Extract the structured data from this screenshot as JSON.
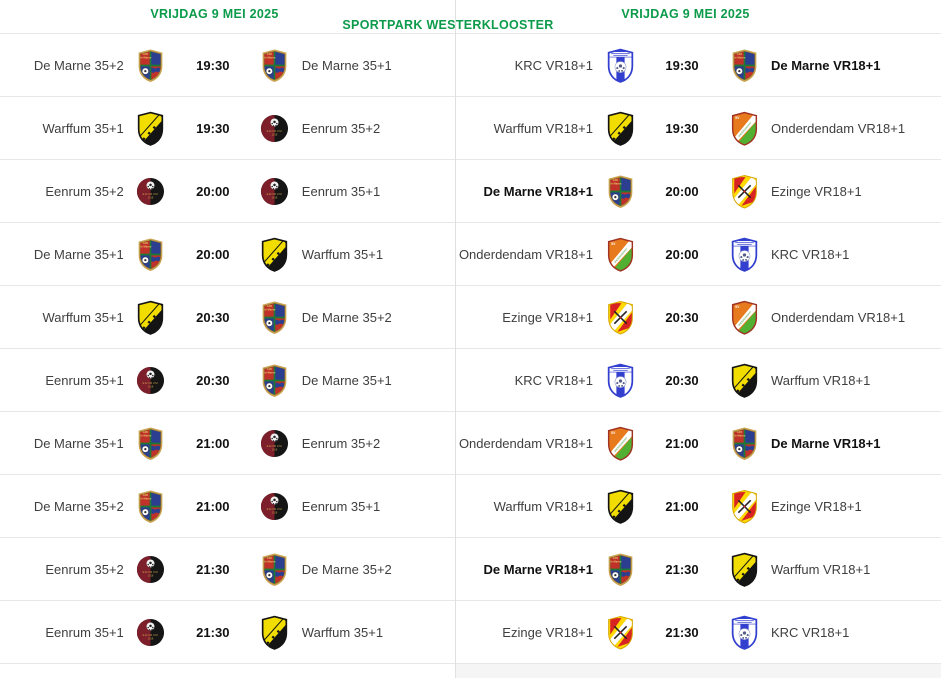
{
  "page": {
    "venue": "SPORTPARK WESTERKLOOSTER"
  },
  "colors": {
    "header_green": "#0c9b4b",
    "row_divider": "#e7e7e7",
    "column_divider": "#e0e0e0",
    "team_text": "#3f3f3f",
    "bold_team_text": "#111111",
    "time_text": "#111111",
    "background": "#ffffff",
    "partial_row_bg": "#f5f5f5"
  },
  "clubs": {
    "demarne": {
      "logo_icon": "demarne-shield-logo",
      "logo_text": "SIO De Marne",
      "colors": [
        "#c03129",
        "#2b3e90",
        "#c8a24e",
        "#1d7a34"
      ]
    },
    "warffum": {
      "logo_icon": "warffum-shield-logo",
      "logo_text": "",
      "colors": [
        "#f2dd00",
        "#111111"
      ]
    },
    "eenrum": {
      "logo_icon": "eenrum-circle-logo",
      "logo_text": "EENRUM 1918",
      "colors": [
        "#7c1f2a",
        "#151515",
        "#caa24c"
      ]
    },
    "krc": {
      "logo_icon": "krc-shield-logo",
      "logo_text": "",
      "colors": [
        "#3340cf",
        "#ffffff"
      ]
    },
    "onderdendam": {
      "logo_icon": "onderdendam-shield-logo",
      "logo_text": "SV",
      "colors": [
        "#e87a1e",
        "#51b032",
        "#ffffff"
      ]
    },
    "ezinge": {
      "logo_icon": "ezinge-shield-logo",
      "logo_text": "",
      "colors": [
        "#ffd900",
        "#d92323",
        "#ffffff"
      ]
    }
  },
  "columns": [
    {
      "date_header": "VRIJDAG 9 MEI 2025",
      "matches": [
        {
          "home": "De Marne 35+2",
          "home_logo": "demarne",
          "time": "19:30",
          "away": "De Marne 35+1",
          "away_logo": "demarne",
          "home_bold": false,
          "away_bold": false
        },
        {
          "home": "Warffum 35+1",
          "home_logo": "warffum",
          "time": "19:30",
          "away": "Eenrum 35+2",
          "away_logo": "eenrum",
          "home_bold": false,
          "away_bold": false
        },
        {
          "home": "Eenrum 35+2",
          "home_logo": "eenrum",
          "time": "20:00",
          "away": "Eenrum 35+1",
          "away_logo": "eenrum",
          "home_bold": false,
          "away_bold": false
        },
        {
          "home": "De Marne 35+1",
          "home_logo": "demarne",
          "time": "20:00",
          "away": "Warffum 35+1",
          "away_logo": "warffum",
          "home_bold": false,
          "away_bold": false
        },
        {
          "home": "Warffum 35+1",
          "home_logo": "warffum",
          "time": "20:30",
          "away": "De Marne 35+2",
          "away_logo": "demarne",
          "home_bold": false,
          "away_bold": false
        },
        {
          "home": "Eenrum 35+1",
          "home_logo": "eenrum",
          "time": "20:30",
          "away": "De Marne 35+1",
          "away_logo": "demarne",
          "home_bold": false,
          "away_bold": false
        },
        {
          "home": "De Marne 35+1",
          "home_logo": "demarne",
          "time": "21:00",
          "away": "Eenrum 35+2",
          "away_logo": "eenrum",
          "home_bold": false,
          "away_bold": false
        },
        {
          "home": "De Marne 35+2",
          "home_logo": "demarne",
          "time": "21:00",
          "away": "Eenrum 35+1",
          "away_logo": "eenrum",
          "home_bold": false,
          "away_bold": false
        },
        {
          "home": "Eenrum 35+2",
          "home_logo": "eenrum",
          "time": "21:30",
          "away": "De Marne 35+2",
          "away_logo": "demarne",
          "home_bold": false,
          "away_bold": false
        },
        {
          "home": "Eenrum 35+1",
          "home_logo": "eenrum",
          "time": "21:30",
          "away": "Warffum 35+1",
          "away_logo": "warffum",
          "home_bold": false,
          "away_bold": false
        }
      ]
    },
    {
      "date_header": "VRIJDAG 9 MEI 2025",
      "matches": [
        {
          "home": "KRC VR18+1",
          "home_logo": "krc",
          "time": "19:30",
          "away": "De Marne VR18+1",
          "away_logo": "demarne",
          "home_bold": false,
          "away_bold": true
        },
        {
          "home": "Warffum VR18+1",
          "home_logo": "warffum",
          "time": "19:30",
          "away": "Onderdendam VR18+1",
          "away_logo": "onderdendam",
          "home_bold": false,
          "away_bold": false
        },
        {
          "home": "De Marne VR18+1",
          "home_logo": "demarne",
          "time": "20:00",
          "away": "Ezinge VR18+1",
          "away_logo": "ezinge",
          "home_bold": true,
          "away_bold": false
        },
        {
          "home": "Onderdendam VR18+1",
          "home_logo": "onderdendam",
          "time": "20:00",
          "away": "KRC VR18+1",
          "away_logo": "krc",
          "home_bold": false,
          "away_bold": false
        },
        {
          "home": "Ezinge VR18+1",
          "home_logo": "ezinge",
          "time": "20:30",
          "away": "Onderdendam VR18+1",
          "away_logo": "onderdendam",
          "home_bold": false,
          "away_bold": false
        },
        {
          "home": "KRC VR18+1",
          "home_logo": "krc",
          "time": "20:30",
          "away": "Warffum VR18+1",
          "away_logo": "warffum",
          "home_bold": false,
          "away_bold": false
        },
        {
          "home": "Onderdendam VR18+1",
          "home_logo": "onderdendam",
          "time": "21:00",
          "away": "De Marne VR18+1",
          "away_logo": "demarne",
          "home_bold": false,
          "away_bold": true
        },
        {
          "home": "Warffum VR18+1",
          "home_logo": "warffum",
          "time": "21:00",
          "away": "Ezinge VR18+1",
          "away_logo": "ezinge",
          "home_bold": false,
          "away_bold": false
        },
        {
          "home": "De Marne VR18+1",
          "home_logo": "demarne",
          "time": "21:30",
          "away": "Warffum VR18+1",
          "away_logo": "warffum",
          "home_bold": true,
          "away_bold": false
        },
        {
          "home": "Ezinge VR18+1",
          "home_logo": "ezinge",
          "time": "21:30",
          "away": "KRC VR18+1",
          "away_logo": "krc",
          "home_bold": false,
          "away_bold": false
        }
      ]
    }
  ]
}
